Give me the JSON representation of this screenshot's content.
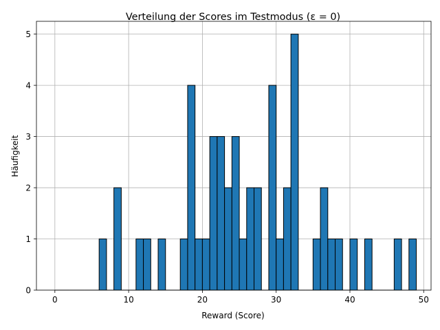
{
  "chart_data": {
    "type": "bar",
    "title": "Verteilung der Scores im Testmodus (ε = 0)",
    "xlabel": "Reward (Score)",
    "ylabel": "Häufigkeit",
    "xlim": [
      -2.5,
      51
    ],
    "ylim": [
      0,
      5.25
    ],
    "xticks": [
      0,
      10,
      20,
      30,
      40,
      50
    ],
    "yticks": [
      0,
      1,
      2,
      3,
      4,
      5
    ],
    "grid": true,
    "bin_width": 1,
    "bins": [
      {
        "x0": 0,
        "count": 0
      },
      {
        "x0": 1,
        "count": 0
      },
      {
        "x0": 2,
        "count": 0
      },
      {
        "x0": 3,
        "count": 0
      },
      {
        "x0": 4,
        "count": 0
      },
      {
        "x0": 5,
        "count": 0
      },
      {
        "x0": 6,
        "count": 1
      },
      {
        "x0": 7,
        "count": 0
      },
      {
        "x0": 8,
        "count": 2
      },
      {
        "x0": 9,
        "count": 0
      },
      {
        "x0": 10,
        "count": 0
      },
      {
        "x0": 11,
        "count": 1
      },
      {
        "x0": 12,
        "count": 1
      },
      {
        "x0": 13,
        "count": 0
      },
      {
        "x0": 14,
        "count": 1
      },
      {
        "x0": 15,
        "count": 0
      },
      {
        "x0": 16,
        "count": 0
      },
      {
        "x0": 17,
        "count": 1
      },
      {
        "x0": 18,
        "count": 4
      },
      {
        "x0": 19,
        "count": 1
      },
      {
        "x0": 20,
        "count": 1
      },
      {
        "x0": 21,
        "count": 3
      },
      {
        "x0": 22,
        "count": 3
      },
      {
        "x0": 23,
        "count": 2
      },
      {
        "x0": 24,
        "count": 3
      },
      {
        "x0": 25,
        "count": 1
      },
      {
        "x0": 26,
        "count": 2
      },
      {
        "x0": 27,
        "count": 2
      },
      {
        "x0": 28,
        "count": 0
      },
      {
        "x0": 29,
        "count": 4
      },
      {
        "x0": 30,
        "count": 1
      },
      {
        "x0": 31,
        "count": 2
      },
      {
        "x0": 32,
        "count": 5
      },
      {
        "x0": 33,
        "count": 0
      },
      {
        "x0": 34,
        "count": 0
      },
      {
        "x0": 35,
        "count": 1
      },
      {
        "x0": 36,
        "count": 2
      },
      {
        "x0": 37,
        "count": 1
      },
      {
        "x0": 38,
        "count": 1
      },
      {
        "x0": 39,
        "count": 0
      },
      {
        "x0": 40,
        "count": 1
      },
      {
        "x0": 41,
        "count": 0
      },
      {
        "x0": 42,
        "count": 1
      },
      {
        "x0": 43,
        "count": 0
      },
      {
        "x0": 44,
        "count": 0
      },
      {
        "x0": 45,
        "count": 0
      },
      {
        "x0": 46,
        "count": 1
      },
      {
        "x0": 47,
        "count": 0
      },
      {
        "x0": 48,
        "count": 1
      }
    ],
    "colors": {
      "bar": "#1f77b4",
      "edge": "#000000"
    }
  }
}
